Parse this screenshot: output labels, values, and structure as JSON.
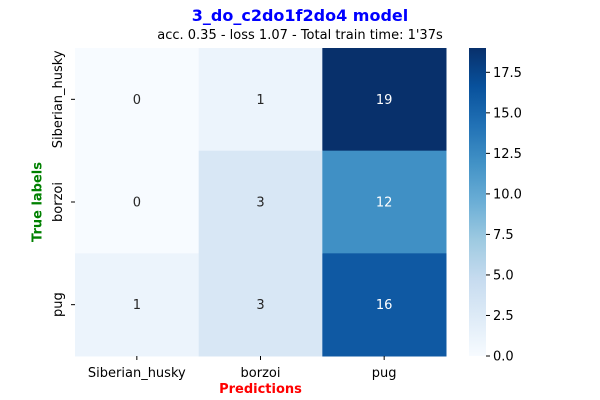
{
  "chart_data": {
    "type": "heatmap",
    "title": "3_do_c2do1f2do4 model",
    "subtitle": "acc. 0.35 - loss 1.07 - Total train time: 1'37s",
    "xlabel": "Predictions",
    "ylabel": "True labels",
    "x_categories": [
      "Siberian_husky",
      "borzoi",
      "pug"
    ],
    "y_categories": [
      "Siberian_husky",
      "borzoi",
      "pug"
    ],
    "values": [
      [
        0,
        1,
        19
      ],
      [
        0,
        3,
        12
      ],
      [
        1,
        3,
        16
      ]
    ],
    "colorbar": {
      "colormap": "Blues",
      "range": [
        0,
        19
      ],
      "ticks": [
        "0.0",
        "2.5",
        "5.0",
        "7.5",
        "10.0",
        "12.5",
        "15.0",
        "17.5"
      ]
    },
    "colors": {
      "title": "#0000ff",
      "xlabel": "#ff0000",
      "ylabel": "#008000"
    }
  }
}
